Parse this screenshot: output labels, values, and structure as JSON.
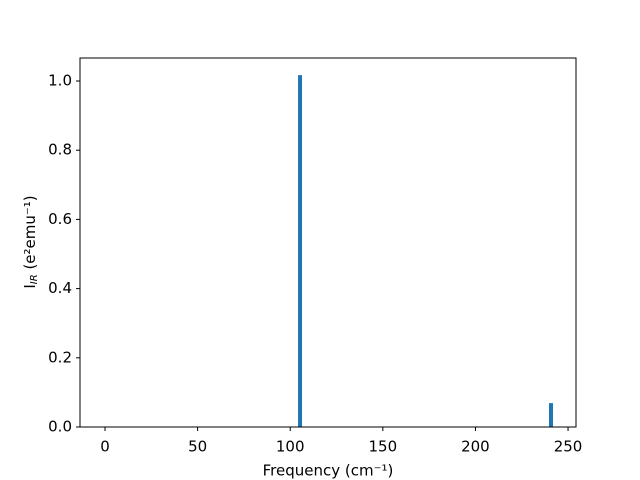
{
  "chart_data": {
    "type": "bar",
    "xlabel": "Frequency (cm⁻¹)",
    "ylabel": [
      "I",
      "IR",
      " (e²emu⁻¹)"
    ],
    "x": [
      105.3,
      240.8
    ],
    "values": [
      1.017,
      0.069
    ],
    "color": "#1f77b4",
    "xlim": [
      -13.5,
      254.3
    ],
    "ylim": [
      0,
      1.0665
    ],
    "xticks": [
      0,
      50,
      100,
      150,
      200,
      250
    ],
    "yticks": [
      {
        "value": 0,
        "label": "0.0"
      },
      {
        "value": 0.2,
        "label": "0.2"
      },
      {
        "value": 0.4,
        "label": "0.4"
      },
      {
        "value": 0.6,
        "label": "0.6"
      },
      {
        "value": 0.8,
        "label": "0.8"
      },
      {
        "value": 1.0,
        "label": "1.0"
      }
    ],
    "grid": false
  }
}
